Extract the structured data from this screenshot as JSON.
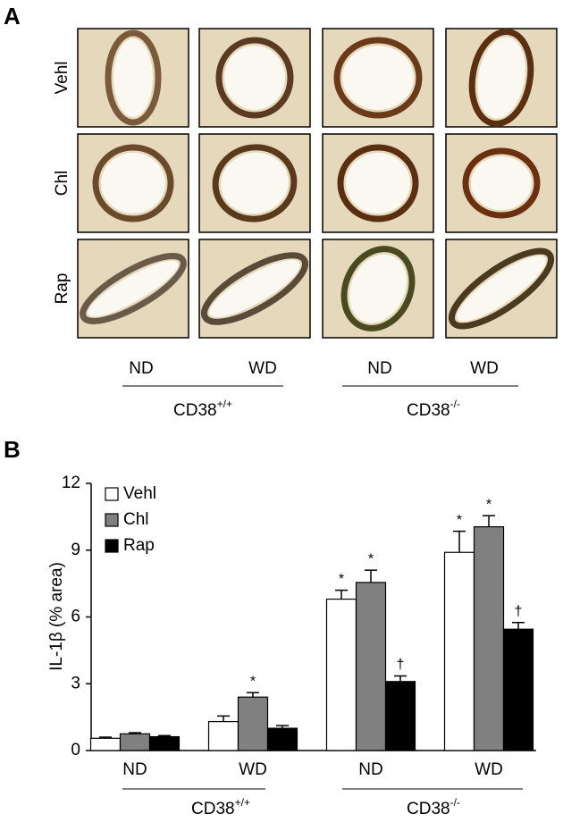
{
  "panel_a": {
    "label": "A",
    "rows": [
      "Vehl",
      "Chl",
      "Rap"
    ],
    "columns": [
      "ND",
      "WD",
      "ND",
      "WD"
    ],
    "groups": [
      {
        "label": "CD38",
        "sup": "+/+"
      },
      {
        "label": "CD38",
        "sup": "-/-"
      }
    ]
  },
  "chart_data": {
    "type": "bar",
    "panel_label": "B",
    "y_label": "IL-1β (% area)",
    "categories": [
      "ND",
      "WD",
      "ND",
      "WD"
    ],
    "groups": [
      {
        "label": "CD38",
        "sup": "+/+"
      },
      {
        "label": "CD38",
        "sup": "-/-"
      }
    ],
    "series": [
      {
        "name": "Vehl",
        "color": "#ffffff",
        "values": [
          0.55,
          1.3,
          6.8,
          8.9
        ],
        "errors": [
          0.05,
          0.25,
          0.4,
          0.95
        ],
        "significance": [
          null,
          null,
          "*",
          "*"
        ]
      },
      {
        "name": "Chl",
        "color": "#808080",
        "values": [
          0.75,
          2.4,
          7.55,
          10.05
        ],
        "errors": [
          0.05,
          0.2,
          0.55,
          0.5
        ],
        "significance": [
          null,
          "*",
          "*",
          "*"
        ]
      },
      {
        "name": "Rap",
        "color": "#000000",
        "values": [
          0.62,
          1.0,
          3.1,
          5.45
        ],
        "errors": [
          0.05,
          0.12,
          0.25,
          0.3
        ],
        "significance": [
          null,
          null,
          "†",
          "†"
        ]
      }
    ],
    "ylim": [
      0,
      12
    ],
    "yticks": [
      0,
      3,
      6,
      9,
      12
    ],
    "grid": false
  }
}
